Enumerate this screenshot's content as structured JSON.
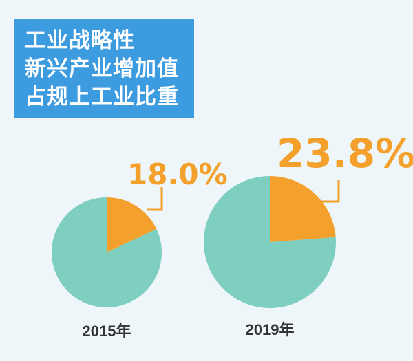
{
  "title_lines": [
    "工业战略性",
    "新兴产业增加值",
    "占规上工业比重"
  ],
  "colors": {
    "background": "#eef6fa",
    "title_bg": "#3d9be0",
    "highlight": "#f3a02c",
    "rest": "#7fcfc1"
  },
  "chart_data": {
    "type": "pie",
    "title": "工业战略性新兴产业增加值占规上工业比重",
    "categories": [
      "2015年",
      "2019年"
    ],
    "values": [
      18.0,
      23.8
    ],
    "value_labels": [
      "18.0%",
      "23.8%"
    ],
    "unit": "%"
  }
}
